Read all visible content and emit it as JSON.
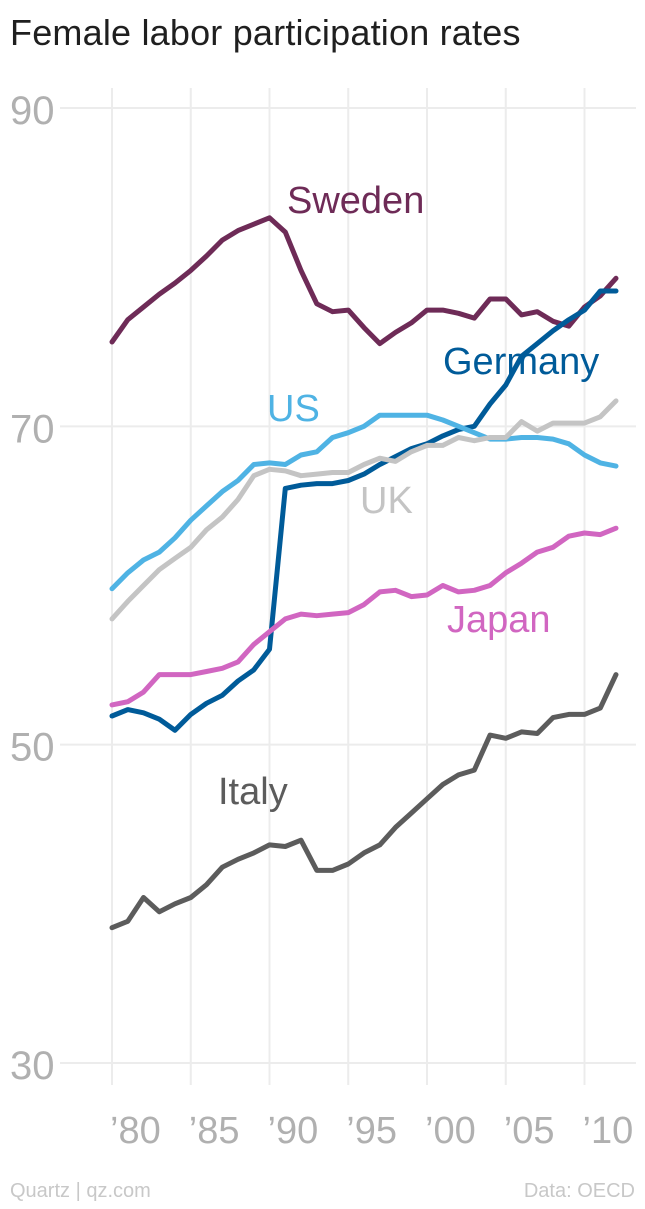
{
  "chart_data": {
    "type": "line",
    "title": "Female labor participation rates",
    "ylim": [
      30,
      90
    ],
    "yticks": [
      30,
      50,
      70,
      90
    ],
    "xlim": [
      1980,
      2012
    ],
    "xticks": [
      1980,
      1985,
      1990,
      1995,
      2000,
      2005,
      2010
    ],
    "xtick_labels": [
      "’80",
      "’85",
      "’90",
      "’95",
      "’00",
      "’05",
      "’10"
    ],
    "grid": true,
    "x": [
      1980,
      1981,
      1982,
      1983,
      1984,
      1985,
      1986,
      1987,
      1988,
      1989,
      1990,
      1991,
      1992,
      1993,
      1994,
      1995,
      1996,
      1997,
      1998,
      1999,
      2000,
      2001,
      2002,
      2003,
      2004,
      2005,
      2006,
      2007,
      2008,
      2009,
      2010,
      2011,
      2012
    ],
    "series": [
      {
        "name": "Sweden",
        "color": "#6e2b57",
        "values": [
          75.3,
          76.7,
          77.5,
          78.3,
          79.0,
          79.8,
          80.7,
          81.7,
          82.3,
          82.7,
          83.1,
          82.2,
          79.8,
          77.7,
          77.2,
          77.3,
          76.2,
          75.2,
          75.9,
          76.5,
          77.3,
          77.3,
          77.1,
          76.8,
          78.0,
          78.0,
          77.0,
          77.2,
          76.6,
          76.3,
          77.5,
          78.2,
          79.3
        ]
      },
      {
        "name": "Germany",
        "color": "#005b99",
        "values": [
          51.8,
          52.2,
          52.0,
          51.6,
          50.9,
          51.9,
          52.6,
          53.1,
          54.0,
          54.7,
          56.0,
          66.1,
          66.3,
          66.4,
          66.4,
          66.6,
          67.0,
          67.6,
          68.1,
          68.6,
          68.9,
          69.4,
          69.8,
          70.0,
          71.4,
          72.6,
          74.4,
          75.2,
          76.0,
          76.7,
          77.3,
          78.5,
          78.5
        ]
      },
      {
        "name": "US",
        "color": "#4fb3e4",
        "values": [
          59.8,
          60.8,
          61.6,
          62.1,
          63.0,
          64.1,
          65.0,
          65.9,
          66.6,
          67.6,
          67.7,
          67.6,
          68.2,
          68.4,
          69.3,
          69.6,
          70.0,
          70.7,
          70.7,
          70.7,
          70.7,
          70.4,
          70.0,
          69.6,
          69.2,
          69.2,
          69.3,
          69.3,
          69.2,
          68.9,
          68.2,
          67.7,
          67.5
        ]
      },
      {
        "name": "UK",
        "color": "#c4c4c4",
        "values": [
          57.9,
          59.0,
          60.0,
          61.0,
          61.7,
          62.4,
          63.5,
          64.3,
          65.4,
          66.9,
          67.3,
          67.2,
          66.9,
          67.0,
          67.1,
          67.1,
          67.6,
          68.0,
          67.8,
          68.4,
          68.8,
          68.8,
          69.3,
          69.1,
          69.3,
          69.3,
          70.3,
          69.7,
          70.2,
          70.2,
          70.2,
          70.6,
          71.6
        ]
      },
      {
        "name": "Japan",
        "color": "#d166c1",
        "values": [
          52.5,
          52.7,
          53.3,
          54.4,
          54.4,
          54.4,
          54.6,
          54.8,
          55.2,
          56.3,
          57.1,
          57.9,
          58.2,
          58.1,
          58.2,
          58.3,
          58.8,
          59.6,
          59.7,
          59.3,
          59.4,
          60.0,
          59.6,
          59.7,
          60.0,
          60.8,
          61.4,
          62.1,
          62.4,
          63.1,
          63.3,
          63.2,
          63.6
        ]
      },
      {
        "name": "Italy",
        "color": "#5c5c5c",
        "values": [
          38.5,
          38.9,
          40.4,
          39.5,
          40.0,
          40.4,
          41.2,
          42.3,
          42.8,
          43.2,
          43.7,
          43.6,
          44.0,
          42.1,
          42.1,
          42.5,
          43.2,
          43.7,
          44.8,
          45.7,
          46.6,
          47.5,
          48.1,
          48.4,
          50.6,
          50.4,
          50.8,
          50.7,
          51.7,
          51.9,
          51.9,
          52.3,
          54.4
        ]
      }
    ],
    "annotations": [
      "Sweden",
      "Germany",
      "US",
      "UK",
      "Japan",
      "Italy"
    ]
  },
  "footer": {
    "credit": "Quartz | qz.com",
    "source": "Data: OECD"
  }
}
